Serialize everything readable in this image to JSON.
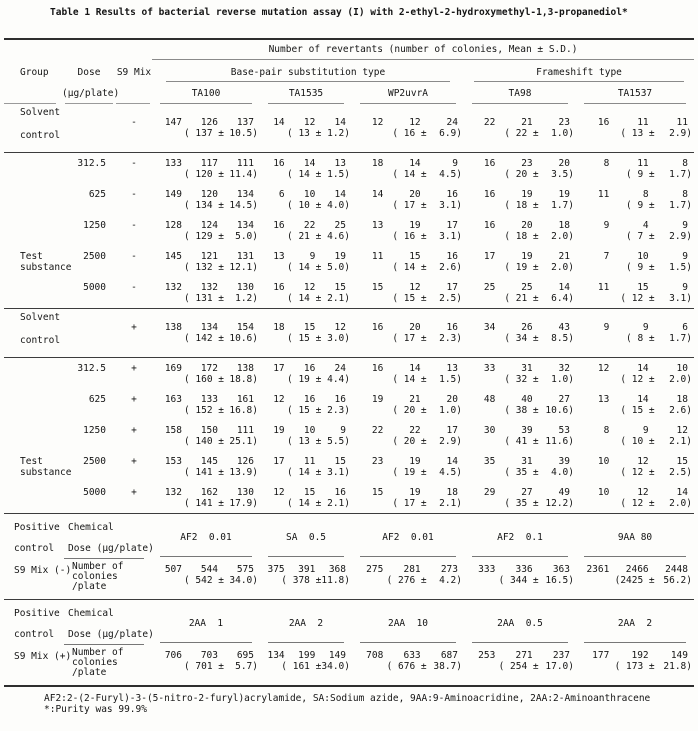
{
  "title": "Table 1  Results of bacterial reverse mutation assay (I) with 2-ethyl-2-hydroxymethyl-1,3-propanediol*",
  "header": {
    "revertants_label": "Number of revertants (number of colonies, Mean ± S.D.)",
    "group_label": "Group",
    "dose_label": "Dose",
    "dose_unit_label": "(μg/plate)",
    "s9_label": "S9 Mix",
    "base_pair_label": "Base-pair substitution type",
    "frameshift_label": "Frameshift type",
    "strains": [
      "TA100",
      "TA1535",
      "WP2uvrA",
      "TA98",
      "TA1537"
    ]
  },
  "body_rows": [
    {
      "group": [
        "Solvent",
        "control"
      ],
      "dose": "",
      "s9": "-",
      "tall": true,
      "rule_after": true,
      "cells": [
        {
          "v": [
            "147",
            "126",
            "137"
          ],
          "m": "137",
          "sd": "10.5"
        },
        {
          "v": [
            "14",
            "12",
            "14"
          ],
          "m": "13",
          "sd": "1.2"
        },
        {
          "v": [
            "12",
            "12",
            "24"
          ],
          "m": "16",
          "sd": "6.9"
        },
        {
          "v": [
            "22",
            "21",
            "23"
          ],
          "m": "22",
          "sd": "1.0"
        },
        {
          "v": [
            "16",
            "11",
            "11"
          ],
          "m": "13",
          "sd": "2.9"
        }
      ]
    },
    {
      "group": [],
      "dose": "312.5",
      "s9": "-",
      "cells": [
        {
          "v": [
            "133",
            "117",
            "111"
          ],
          "m": "120",
          "sd": "11.4"
        },
        {
          "v": [
            "16",
            "14",
            "13"
          ],
          "m": "14",
          "sd": "1.5"
        },
        {
          "v": [
            "18",
            "14",
            "9"
          ],
          "m": "14",
          "sd": "4.5"
        },
        {
          "v": [
            "16",
            "23",
            "20"
          ],
          "m": "20",
          "sd": "3.5"
        },
        {
          "v": [
            "8",
            "11",
            "8"
          ],
          "m": "9",
          "sd": "1.7"
        }
      ]
    },
    {
      "group": [],
      "dose": "625",
      "s9": "-",
      "cells": [
        {
          "v": [
            "149",
            "120",
            "134"
          ],
          "m": "134",
          "sd": "14.5"
        },
        {
          "v": [
            "6",
            "10",
            "14"
          ],
          "m": "10",
          "sd": "4.0"
        },
        {
          "v": [
            "14",
            "20",
            "16"
          ],
          "m": "17",
          "sd": "3.1"
        },
        {
          "v": [
            "16",
            "19",
            "19"
          ],
          "m": "18",
          "sd": "1.7"
        },
        {
          "v": [
            "11",
            "8",
            "8"
          ],
          "m": "9",
          "sd": "1.7"
        }
      ]
    },
    {
      "group": [],
      "dose": "1250",
      "s9": "-",
      "cells": [
        {
          "v": [
            "128",
            "124",
            "134"
          ],
          "m": "129",
          "sd": "5.0"
        },
        {
          "v": [
            "16",
            "22",
            "25"
          ],
          "m": "21",
          "sd": "4.6"
        },
        {
          "v": [
            "13",
            "19",
            "17"
          ],
          "m": "16",
          "sd": "3.1"
        },
        {
          "v": [
            "16",
            "20",
            "18"
          ],
          "m": "18",
          "sd": "2.0"
        },
        {
          "v": [
            "9",
            "4",
            "9"
          ],
          "m": "7",
          "sd": "2.9"
        }
      ]
    },
    {
      "group": [
        "Test",
        "substance"
      ],
      "dose": "2500",
      "s9": "-",
      "cells": [
        {
          "v": [
            "145",
            "121",
            "131"
          ],
          "m": "132",
          "sd": "12.1"
        },
        {
          "v": [
            "13",
            "9",
            "19"
          ],
          "m": "14",
          "sd": "5.0"
        },
        {
          "v": [
            "11",
            "15",
            "16"
          ],
          "m": "14",
          "sd": "2.6"
        },
        {
          "v": [
            "17",
            "19",
            "21"
          ],
          "m": "19",
          "sd": "2.0"
        },
        {
          "v": [
            "7",
            "10",
            "9"
          ],
          "m": "9",
          "sd": "1.5"
        }
      ]
    },
    {
      "group": [],
      "dose": "5000",
      "s9": "-",
      "rule_after": true,
      "cells": [
        {
          "v": [
            "132",
            "132",
            "130"
          ],
          "m": "131",
          "sd": "1.2"
        },
        {
          "v": [
            "16",
            "12",
            "15"
          ],
          "m": "14",
          "sd": "2.1"
        },
        {
          "v": [
            "15",
            "12",
            "17"
          ],
          "m": "15",
          "sd": "2.5"
        },
        {
          "v": [
            "25",
            "25",
            "14"
          ],
          "m": "21",
          "sd": "6.4"
        },
        {
          "v": [
            "11",
            "15",
            "9"
          ],
          "m": "12",
          "sd": "3.1"
        }
      ]
    },
    {
      "group": [
        "Solvent",
        "control"
      ],
      "dose": "",
      "s9": "+",
      "tall": true,
      "rule_after": true,
      "cells": [
        {
          "v": [
            "138",
            "134",
            "154"
          ],
          "m": "142",
          "sd": "10.6"
        },
        {
          "v": [
            "18",
            "15",
            "12"
          ],
          "m": "15",
          "sd": "3.0"
        },
        {
          "v": [
            "16",
            "20",
            "16"
          ],
          "m": "17",
          "sd": "2.3"
        },
        {
          "v": [
            "34",
            "26",
            "43"
          ],
          "m": "34",
          "sd": "8.5"
        },
        {
          "v": [
            "9",
            "9",
            "6"
          ],
          "m": "8",
          "sd": "1.7"
        }
      ]
    },
    {
      "group": [],
      "dose": "312.5",
      "s9": "+",
      "cells": [
        {
          "v": [
            "169",
            "172",
            "138"
          ],
          "m": "160",
          "sd": "18.8"
        },
        {
          "v": [
            "17",
            "16",
            "24"
          ],
          "m": "19",
          "sd": "4.4"
        },
        {
          "v": [
            "16",
            "14",
            "13"
          ],
          "m": "14",
          "sd": "1.5"
        },
        {
          "v": [
            "33",
            "31",
            "32"
          ],
          "m": "32",
          "sd": "1.0"
        },
        {
          "v": [
            "12",
            "14",
            "10"
          ],
          "m": "12",
          "sd": "2.0"
        }
      ]
    },
    {
      "group": [],
      "dose": "625",
      "s9": "+",
      "cells": [
        {
          "v": [
            "163",
            "133",
            "161"
          ],
          "m": "152",
          "sd": "16.8"
        },
        {
          "v": [
            "12",
            "16",
            "16"
          ],
          "m": "15",
          "sd": "2.3"
        },
        {
          "v": [
            "19",
            "21",
            "20"
          ],
          "m": "20",
          "sd": "1.0"
        },
        {
          "v": [
            "48",
            "40",
            "27"
          ],
          "m": "38",
          "sd": "10.6"
        },
        {
          "v": [
            "13",
            "14",
            "18"
          ],
          "m": "15",
          "sd": "2.6"
        }
      ]
    },
    {
      "group": [],
      "dose": "1250",
      "s9": "+",
      "cells": [
        {
          "v": [
            "158",
            "150",
            "111"
          ],
          "m": "140",
          "sd": "25.1"
        },
        {
          "v": [
            "19",
            "10",
            "9"
          ],
          "m": "13",
          "sd": "5.5"
        },
        {
          "v": [
            "22",
            "22",
            "17"
          ],
          "m": "20",
          "sd": "2.9"
        },
        {
          "v": [
            "30",
            "39",
            "53"
          ],
          "m": "41",
          "sd": "11.6"
        },
        {
          "v": [
            "8",
            "9",
            "12"
          ],
          "m": "10",
          "sd": "2.1"
        }
      ]
    },
    {
      "group": [
        "Test",
        "substance"
      ],
      "dose": "2500",
      "s9": "+",
      "cells": [
        {
          "v": [
            "153",
            "145",
            "126"
          ],
          "m": "141",
          "sd": "13.9"
        },
        {
          "v": [
            "17",
            "11",
            "15"
          ],
          "m": "14",
          "sd": "3.1"
        },
        {
          "v": [
            "23",
            "19",
            "14"
          ],
          "m": "19",
          "sd": "4.5"
        },
        {
          "v": [
            "35",
            "31",
            "39"
          ],
          "m": "35",
          "sd": "4.0"
        },
        {
          "v": [
            "10",
            "12",
            "15"
          ],
          "m": "12",
          "sd": "2.5"
        }
      ]
    },
    {
      "group": [],
      "dose": "5000",
      "s9": "+",
      "rule_after": true,
      "cells": [
        {
          "v": [
            "132",
            "162",
            "130"
          ],
          "m": "141",
          "sd": "17.9"
        },
        {
          "v": [
            "12",
            "15",
            "16"
          ],
          "m": "14",
          "sd": "2.1"
        },
        {
          "v": [
            "15",
            "19",
            "18"
          ],
          "m": "17",
          "sd": "2.1"
        },
        {
          "v": [
            "29",
            "27",
            "49"
          ],
          "m": "35",
          "sd": "12.2"
        },
        {
          "v": [
            "10",
            "12",
            "14"
          ],
          "m": "12",
          "sd": "2.0"
        }
      ]
    }
  ],
  "positive_blocks": [
    {
      "control_lines": [
        "Positive",
        "control",
        "S9 Mix (-)"
      ],
      "chemical_label": "Chemical",
      "dose_label": "Dose (μg/plate)",
      "colonies_lines": [
        "Number of",
        "colonies",
        "/plate"
      ],
      "chemicals": [
        "AF2  0.01",
        "SA  0.5",
        "AF2  0.01",
        "AF2  0.1",
        "9AA 80"
      ],
      "cells": [
        {
          "v": [
            "507",
            "544",
            "575"
          ],
          "m": "542",
          "sd": "34.0"
        },
        {
          "v": [
            "375",
            "391",
            "368"
          ],
          "m": "378",
          "sd": "11.8"
        },
        {
          "v": [
            "275",
            "281",
            "273"
          ],
          "m": "276",
          "sd": "4.2"
        },
        {
          "v": [
            "333",
            "336",
            "363"
          ],
          "m": "344",
          "sd": "16.5"
        },
        {
          "v": [
            "2361",
            "2466",
            "2448"
          ],
          "m": "2425",
          "sd": "56.2"
        }
      ]
    },
    {
      "control_lines": [
        "Positive",
        "control",
        "S9 Mix (+)"
      ],
      "chemical_label": "Chemical",
      "dose_label": "Dose (μg/plate)",
      "colonies_lines": [
        "Number of",
        "colonies",
        "/plate"
      ],
      "chemicals": [
        "2AA  1",
        "2AA  2",
        "2AA  10",
        "2AA  0.5",
        "2AA  2"
      ],
      "cells": [
        {
          "v": [
            "706",
            "703",
            "695"
          ],
          "m": "701",
          "sd": "5.7"
        },
        {
          "v": [
            "134",
            "199",
            "149"
          ],
          "m": "161",
          "sd": "34.0"
        },
        {
          "v": [
            "708",
            "633",
            "687"
          ],
          "m": "676",
          "sd": "38.7"
        },
        {
          "v": [
            "253",
            "271",
            "237"
          ],
          "m": "254",
          "sd": "17.0"
        },
        {
          "v": [
            "177",
            "192",
            "149"
          ],
          "m": "173",
          "sd": "21.8"
        }
      ]
    }
  ],
  "footnotes": [
    "AF2:2-(2-Furyl)-3-(5-nitro-2-furyl)acrylamide, SA:Sodium azide, 9AA:9-Aminoacridine, 2AA:2-Aminoanthracene",
    "*:Purity was 99.9%"
  ]
}
